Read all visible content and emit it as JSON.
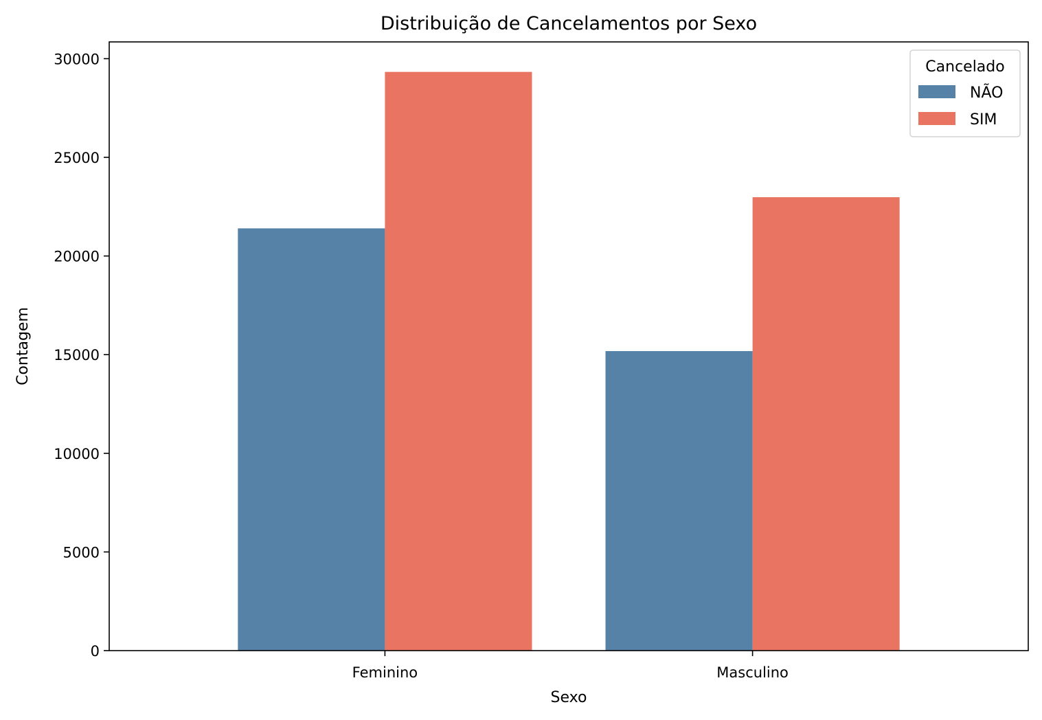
{
  "chart_data": {
    "type": "bar",
    "title": "Distribuição de Cancelamentos por Sexo",
    "xlabel": "Sexo",
    "ylabel": "Contagem",
    "categories": [
      "Feminino",
      "Masculino"
    ],
    "series": [
      {
        "name": "NÃO",
        "values": [
          21400,
          15180
        ],
        "color": "#5582a6"
      },
      {
        "name": "SIM",
        "values": [
          29330,
          22980
        ],
        "color": "#e87461"
      }
    ],
    "ylim": [
      0,
      30850
    ],
    "yticks": [
      0,
      5000,
      10000,
      15000,
      20000,
      25000,
      30000
    ],
    "grid": false,
    "legend": {
      "title": "Cancelado",
      "placement": "top-right"
    }
  }
}
